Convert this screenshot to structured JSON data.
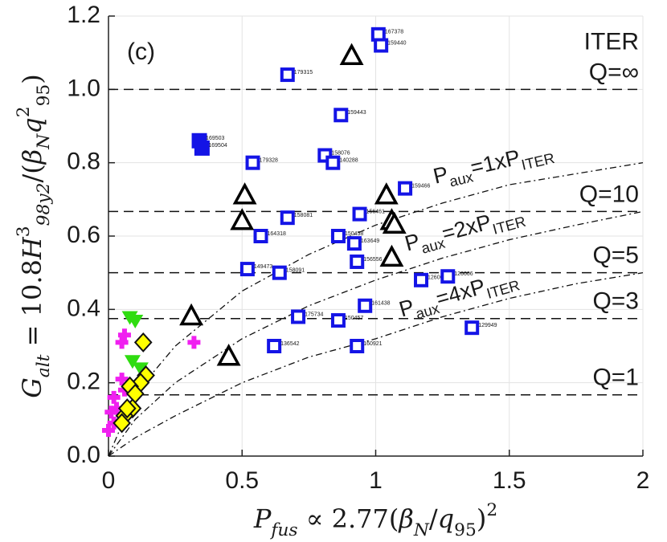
{
  "chart_data": {
    "type": "scatter",
    "panel_label": "(c)",
    "device_label": "ITER",
    "xlabel": [
      {
        "t": "P",
        "i": true
      },
      {
        "t": "fus",
        "i": true,
        "s": "sub"
      },
      {
        "t": " ∝ 2.77("
      },
      {
        "t": "β",
        "i": true
      },
      {
        "t": "N",
        "i": true,
        "s": "sub"
      },
      {
        "t": "/"
      },
      {
        "t": "q",
        "i": true
      },
      {
        "t": "95",
        "s": "sub"
      },
      {
        "t": ")"
      },
      {
        "t": "2",
        "s": "sup"
      }
    ],
    "ylabel": [
      {
        "t": "G",
        "i": true
      },
      {
        "t": "alt",
        "i": true,
        "s": "sub"
      },
      {
        "t": " = 10.8"
      },
      {
        "t": "H",
        "i": true
      },
      {
        "t": "3",
        "s": "sup"
      },
      {
        "t": "98y2",
        "i": true,
        "s": "sub"
      },
      {
        "t": "/("
      },
      {
        "t": "β",
        "i": true
      },
      {
        "t": "N",
        "i": true,
        "s": "sub"
      },
      {
        "t": "q",
        "i": true
      },
      {
        "t": "2",
        "s": "sup"
      },
      {
        "t": "95",
        "s": "sub"
      },
      {
        "t": ")"
      }
    ],
    "xlim": [
      0,
      2
    ],
    "ylim": [
      0,
      1.2
    ],
    "xticks": [
      0,
      0.5,
      1,
      1.5,
      2
    ],
    "yticks": [
      {
        "value": 0,
        "label": "0.0"
      },
      0.2,
      0.4,
      0.6,
      0.8,
      {
        "value": 1,
        "label": "1.0"
      },
      1.2
    ],
    "grid": true,
    "q_lines": [
      {
        "value": 1,
        "label": "Q=∞"
      },
      {
        "value": 0.667,
        "label": "Q=10"
      },
      {
        "value": 0.5,
        "label": "Q=5"
      },
      {
        "value": 0.375,
        "label": "Q=3"
      },
      {
        "value": 0.167,
        "label": "Q=1"
      }
    ],
    "curves": [
      {
        "label": [
          {
            "t": "P"
          },
          {
            "t": "aux",
            "s": "sub"
          },
          {
            "t": "=1xP"
          },
          {
            "t": "ITER",
            "s": "sub"
          }
        ],
        "x": [
          0,
          0.1,
          0.25,
          0.5,
          0.75,
          1,
          1.25,
          1.5,
          1.75,
          2
        ],
        "y": [
          0,
          0.17,
          0.3,
          0.45,
          0.55,
          0.63,
          0.69,
          0.74,
          0.77,
          0.8
        ]
      },
      {
        "label": [
          {
            "t": "P"
          },
          {
            "t": "aux",
            "s": "sub"
          },
          {
            "t": "=2xP"
          },
          {
            "t": "ITER",
            "s": "sub"
          }
        ],
        "x": [
          0,
          0.1,
          0.25,
          0.5,
          0.75,
          1,
          1.25,
          1.5,
          1.75,
          2
        ],
        "y": [
          0,
          0.1,
          0.2,
          0.32,
          0.41,
          0.48,
          0.54,
          0.59,
          0.63,
          0.667
        ]
      },
      {
        "label": [
          {
            "t": "P"
          },
          {
            "t": "aux",
            "s": "sub"
          },
          {
            "t": "=4xP"
          },
          {
            "t": "ITER",
            "s": "sub"
          }
        ],
        "x": [
          0,
          0.1,
          0.25,
          0.5,
          0.75,
          1,
          1.25,
          1.5,
          1.75,
          2
        ],
        "y": [
          0,
          0.05,
          0.11,
          0.2,
          0.27,
          0.32,
          0.38,
          0.43,
          0.47,
          0.5
        ]
      }
    ],
    "series": [
      {
        "marker": "square",
        "color": "#1414e6",
        "x": [
          1.01,
          1.02,
          0.67,
          0.87,
          0.81,
          0.84,
          0.54,
          1.11,
          0.94,
          0.67,
          0.57,
          0.86,
          0.92,
          0.52,
          0.64,
          0.93,
          1.17,
          1.27,
          0.96,
          0.71,
          0.86,
          0.62,
          0.93,
          1.36
        ],
        "values": [
          1.15,
          1.12,
          1.04,
          0.93,
          0.82,
          0.8,
          0.8,
          0.73,
          0.66,
          0.65,
          0.6,
          0.6,
          0.58,
          0.51,
          0.5,
          0.53,
          0.48,
          0.49,
          0.41,
          0.38,
          0.37,
          0.3,
          0.3,
          0.35
        ],
        "labels": [
          "167378",
          "159440",
          "179315",
          "159443",
          "158076",
          "140288",
          "179328",
          "159466",
          "156461",
          "158081",
          "164318",
          "150458",
          "163649",
          "149473",
          "158091",
          "156556",
          "126006",
          "126006",
          "161438",
          "175734",
          "150457",
          "136542",
          "160921",
          "129949"
        ]
      },
      {
        "marker": "square-filled",
        "color": "#1414e6",
        "x": [
          0.34,
          0.35
        ],
        "values": [
          0.86,
          0.84
        ],
        "labels": [
          "169503",
          "169504"
        ]
      },
      {
        "marker": "triangle",
        "color": "#000000",
        "x": [
          0.91,
          0.51,
          0.5,
          1.04,
          1.06,
          1.07,
          1.06,
          0.31,
          0.45
        ],
        "values": [
          1.09,
          0.71,
          0.64,
          0.71,
          0.64,
          0.63,
          0.54,
          0.38,
          0.27
        ]
      },
      {
        "marker": "triangle-down",
        "color": "#2fdc10",
        "x": [
          0.08,
          0.1,
          0.09,
          0.12,
          0.1
        ],
        "values": [
          0.38,
          0.37,
          0.26,
          0.24,
          0.19
        ]
      },
      {
        "marker": "plus",
        "color": "#f020f0",
        "x": [
          0.32,
          0.05,
          0.06,
          0.05,
          0.02,
          0.01,
          0.02,
          0,
          0.03,
          0.06
        ],
        "values": [
          0.31,
          0.31,
          0.33,
          0.21,
          0.16,
          0.12,
          0.09,
          0.07,
          0.13,
          0.18
        ]
      },
      {
        "marker": "diamond",
        "color": "#ffff00",
        "x": [
          0.13,
          0.14,
          0.12,
          0.08,
          0.1,
          0.09,
          0.06,
          0.05,
          0.07
        ],
        "values": [
          0.31,
          0.22,
          0.2,
          0.19,
          0.17,
          0.13,
          0.11,
          0.09,
          0.13
        ]
      }
    ]
  }
}
